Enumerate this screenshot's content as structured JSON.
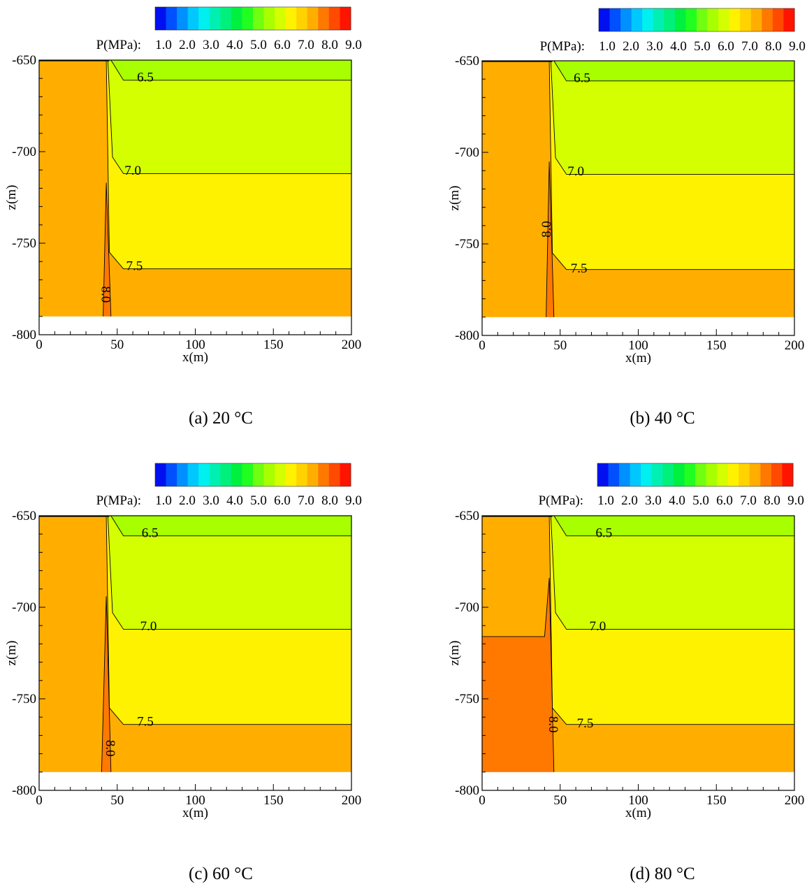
{
  "colorbar": {
    "label": "P(MPa):",
    "tick_labels": [
      "1.0",
      "2.0",
      "3.0",
      "4.0",
      "5.0",
      "6.0",
      "7.0",
      "8.0",
      "9.0"
    ],
    "colors": [
      "#0010f0",
      "#0050ff",
      "#0090ff",
      "#00c8ff",
      "#00f0f0",
      "#00f0b4",
      "#00f07c",
      "#00f040",
      "#20ff20",
      "#70ff10",
      "#a8ff00",
      "#d4ff00",
      "#fff200",
      "#ffd200",
      "#ffae00",
      "#ff7800",
      "#ff4a00",
      "#ff1400"
    ]
  },
  "axes": {
    "xlabel": "x(m)",
    "ylabel": "z(m)",
    "x_ticks": [
      0,
      50,
      100,
      150,
      200
    ],
    "y_ticks": [
      -650,
      -700,
      -750,
      -800
    ],
    "xlim": [
      0,
      200
    ],
    "ylim": [
      -800,
      -650
    ]
  },
  "panels": [
    {
      "caption": "(a) 20 °C",
      "contour_labels": [
        "6.5",
        "7.0",
        "7.5",
        "8.0"
      ]
    },
    {
      "caption": "(b) 40 °C",
      "contour_labels": [
        "6.5",
        "7.0",
        "7.5",
        "8.0"
      ]
    },
    {
      "caption": "(c) 60 °C",
      "contour_labels": [
        "6.5",
        "7.0",
        "7.5",
        "8.0"
      ]
    },
    {
      "caption": "(d) 80 °C",
      "contour_labels": [
        "6.5",
        "7.0",
        "7.5",
        "8.0"
      ]
    }
  ],
  "chart_data": [
    {
      "type": "heatmap",
      "title": "(a) 20 °C",
      "xlabel": "x(m)",
      "ylabel": "z(m)",
      "xlim": [
        0,
        200
      ],
      "ylim": [
        -800,
        -650
      ],
      "model_bottom": -790,
      "colors": {
        "6.0-6.5": "#a8ff00",
        "6.5-7.0": "#d4ff00",
        "7.0-7.5": "#fff200",
        "7.5-8.0": "#ffae00",
        "8.0-8.5": "#ff7800"
      },
      "contours": [
        {
          "level": 6.5,
          "label_x": 68,
          "label_z": -660,
          "points": [
            [
              46,
              -650
            ],
            [
              54,
              -661
            ],
            [
              200,
              -661
            ]
          ]
        },
        {
          "level": 7.0,
          "label_x": 60,
          "label_z": -711,
          "points": [
            [
              44,
              -650
            ],
            [
              47,
              -703
            ],
            [
              54,
              -712
            ],
            [
              200,
              -712
            ]
          ]
        },
        {
          "level": 7.5,
          "label_x": 61,
          "label_z": -763,
          "points": [
            [
              43,
              -650
            ],
            [
              45,
              -755
            ],
            [
              54,
              -764
            ],
            [
              200,
              -764
            ]
          ]
        },
        {
          "level": 8.0,
          "label_x": 42,
          "label_z": -778,
          "label_rotate": 90,
          "points": [
            [
              41,
              -790
            ],
            [
              43,
              -717
            ],
            [
              46,
              -790
            ]
          ]
        }
      ]
    },
    {
      "type": "heatmap",
      "title": "(b) 40 °C",
      "xlabel": "x(m)",
      "ylabel": "z(m)",
      "xlim": [
        0,
        200
      ],
      "ylim": [
        -800,
        -650
      ],
      "model_bottom": -790,
      "colors": {
        "6.0-6.5": "#a8ff00",
        "6.5-7.0": "#d4ff00",
        "7.0-7.5": "#fff200",
        "7.5-8.0": "#ffae00",
        "8.0-8.5": "#ff7800"
      },
      "contours": [
        {
          "level": 6.5,
          "label_x": 64,
          "label_z": -660,
          "points": [
            [
              46,
              -650
            ],
            [
              54,
              -661
            ],
            [
              200,
              -661
            ]
          ]
        },
        {
          "level": 7.0,
          "label_x": 60,
          "label_z": -711,
          "points": [
            [
              44,
              -650
            ],
            [
              47,
              -703
            ],
            [
              54,
              -712
            ],
            [
              200,
              -712
            ]
          ]
        },
        {
          "level": 7.5,
          "label_x": 62,
          "label_z": -764,
          "points": [
            [
              43,
              -650
            ],
            [
              45,
              -755
            ],
            [
              54,
              -764
            ],
            [
              200,
              -764
            ]
          ]
        },
        {
          "level": 8.0,
          "label_x": 42,
          "label_z": -742,
          "label_rotate": -90,
          "points": [
            [
              41,
              -790
            ],
            [
              43,
              -705
            ],
            [
              46,
              -790
            ]
          ]
        }
      ]
    },
    {
      "type": "heatmap",
      "title": "(c) 60 °C",
      "xlabel": "x(m)",
      "ylabel": "z(m)",
      "xlim": [
        0,
        200
      ],
      "ylim": [
        -800,
        -650
      ],
      "model_bottom": -790,
      "colors": {
        "6.0-6.5": "#a8ff00",
        "6.5-7.0": "#d4ff00",
        "7.0-7.5": "#fff200",
        "7.5-8.0": "#ffae00",
        "8.0-8.5": "#ff7800"
      },
      "contours": [
        {
          "level": 6.5,
          "label_x": 71,
          "label_z": -660,
          "points": [
            [
              46,
              -650
            ],
            [
              54,
              -661
            ],
            [
              200,
              -661
            ]
          ]
        },
        {
          "level": 7.0,
          "label_x": 70,
          "label_z": -711,
          "points": [
            [
              44,
              -650
            ],
            [
              47,
              -703
            ],
            [
              54,
              -712
            ],
            [
              200,
              -712
            ]
          ]
        },
        {
          "level": 7.5,
          "label_x": 68,
          "label_z": -763,
          "points": [
            [
              43,
              -650
            ],
            [
              45,
              -755
            ],
            [
              54,
              -764
            ],
            [
              200,
              -764
            ]
          ]
        },
        {
          "level": 8.0,
          "label_x": 45,
          "label_z": -777,
          "label_rotate": 90,
          "points": [
            [
              40,
              -790
            ],
            [
              43,
              -694
            ],
            [
              46,
              -790
            ]
          ]
        }
      ]
    },
    {
      "type": "heatmap",
      "title": "(d) 80 °C",
      "xlabel": "x(m)",
      "ylabel": "z(m)",
      "xlim": [
        0,
        200
      ],
      "ylim": [
        -800,
        -650
      ],
      "model_bottom": -790,
      "colors": {
        "6.0-6.5": "#a8ff00",
        "6.5-7.0": "#d4ff00",
        "7.0-7.5": "#fff200",
        "7.5-8.0": "#ffae00",
        "8.0-8.5": "#ff7800"
      },
      "contours": [
        {
          "level": 6.5,
          "label_x": 78,
          "label_z": -660,
          "points": [
            [
              46,
              -650
            ],
            [
              54,
              -661
            ],
            [
              200,
              -661
            ]
          ]
        },
        {
          "level": 7.0,
          "label_x": 74,
          "label_z": -711,
          "points": [
            [
              44,
              -650
            ],
            [
              47,
              -703
            ],
            [
              54,
              -712
            ],
            [
              200,
              -712
            ]
          ]
        },
        {
          "level": 7.5,
          "label_x": 66,
          "label_z": -764,
          "points": [
            [
              43,
              -650
            ],
            [
              45,
              -755
            ],
            [
              54,
              -764
            ],
            [
              200,
              -764
            ]
          ]
        },
        {
          "level": 8.0,
          "label_x": 45,
          "label_z": -764,
          "label_rotate": 90,
          "points": [
            [
              0,
              -716
            ],
            [
              40,
              -716
            ],
            [
              43,
              -684
            ],
            [
              46,
              -790
            ]
          ]
        }
      ]
    }
  ]
}
